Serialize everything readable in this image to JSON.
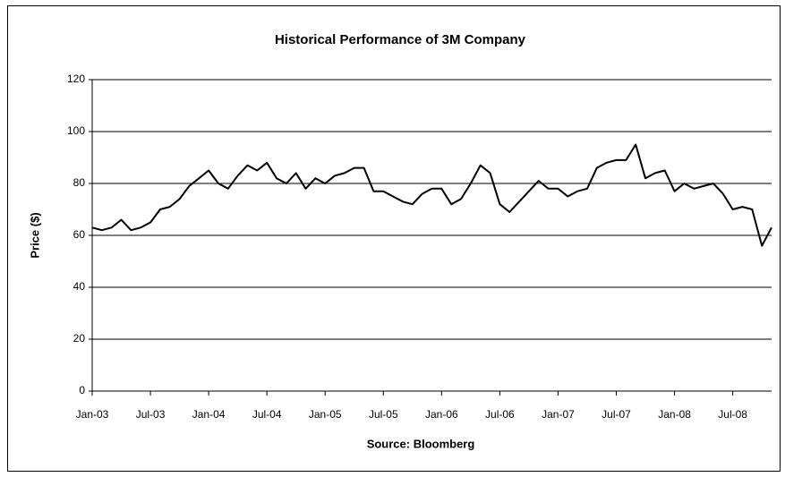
{
  "chart_data": {
    "type": "line",
    "title": "Historical Performance of 3M Company",
    "xlabel": "Source: Bloomberg",
    "ylabel": "Price ($)",
    "categories": [
      "Jan-03",
      null,
      null,
      null,
      null,
      null,
      "Jul-03",
      null,
      null,
      null,
      null,
      null,
      "Jan-04",
      null,
      null,
      null,
      null,
      null,
      "Jul-04",
      null,
      null,
      null,
      null,
      null,
      "Jan-05",
      null,
      null,
      null,
      null,
      null,
      "Jul-05",
      null,
      null,
      null,
      null,
      null,
      "Jan-06",
      null,
      null,
      null,
      null,
      null,
      "Jul-06",
      null,
      null,
      null,
      null,
      null,
      "Jan-07",
      null,
      null,
      null,
      null,
      null,
      "Jul-07",
      null,
      null,
      null,
      null,
      null,
      "Jan-08",
      null,
      null,
      null,
      null,
      null,
      "Jul-08",
      null,
      null,
      null,
      null
    ],
    "values": [
      63,
      62,
      63,
      66,
      62,
      63,
      65,
      70,
      71,
      74,
      79,
      82,
      85,
      80,
      78,
      83,
      87,
      85,
      88,
      82,
      80,
      84,
      78,
      82,
      80,
      83,
      84,
      86,
      86,
      77,
      77,
      75,
      73,
      72,
      76,
      78,
      78,
      72,
      74,
      80,
      87,
      84,
      72,
      69,
      73,
      77,
      81,
      78,
      78,
      75,
      77,
      78,
      86,
      88,
      89,
      89,
      95,
      82,
      84,
      85,
      77,
      80,
      78,
      79,
      80,
      76,
      70,
      71,
      70,
      56,
      63
    ],
    "color": "#000000",
    "ylim": [
      0,
      120
    ],
    "yticks": [
      0,
      20,
      40,
      60,
      80,
      100,
      120
    ],
    "grid": true
  }
}
